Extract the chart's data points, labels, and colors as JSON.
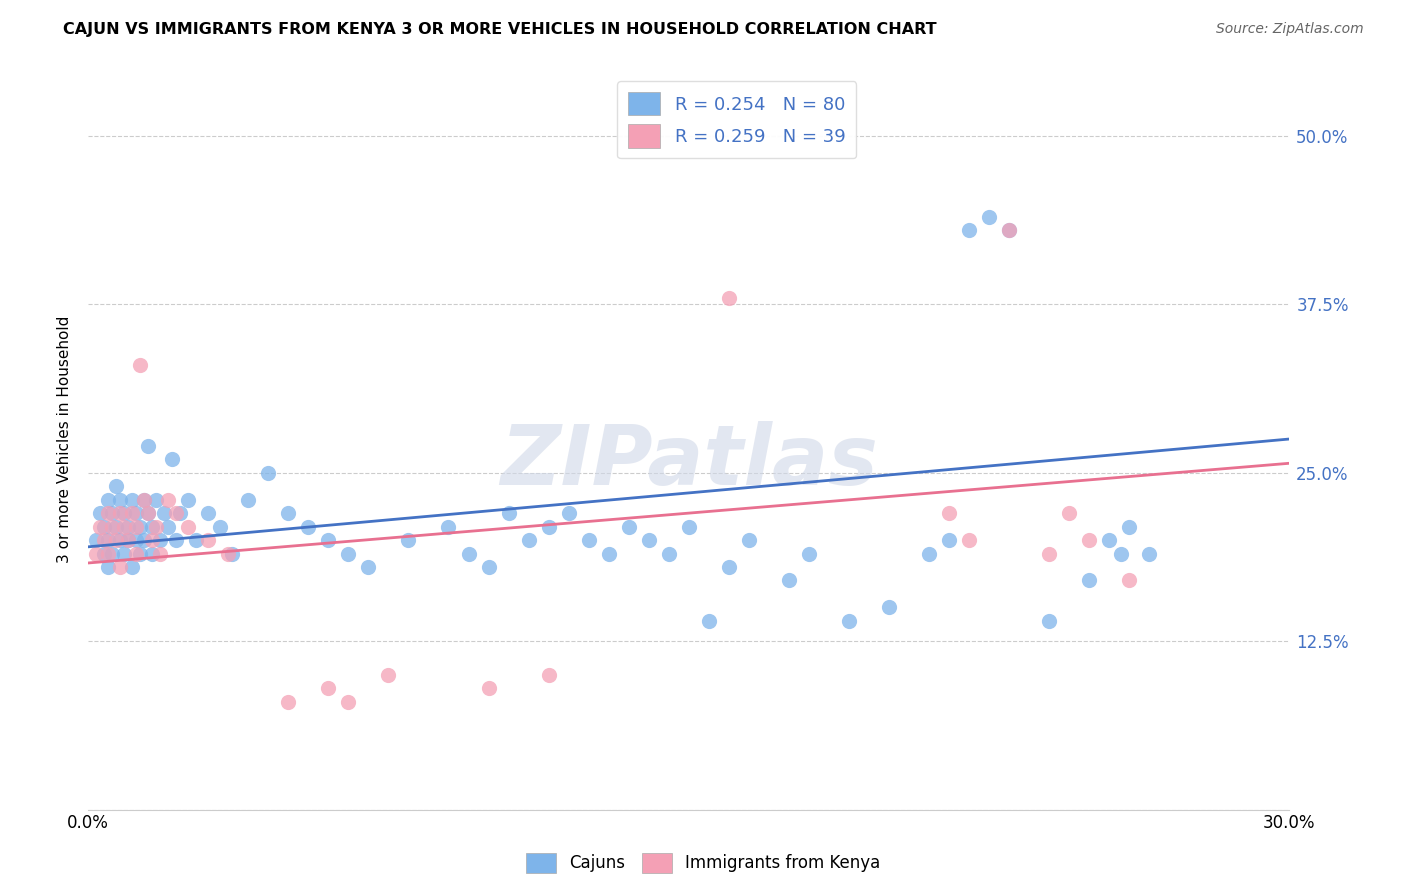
{
  "title": "CAJUN VS IMMIGRANTS FROM KENYA 3 OR MORE VEHICLES IN HOUSEHOLD CORRELATION CHART",
  "source": "Source: ZipAtlas.com",
  "ylabel": "3 or more Vehicles in Household",
  "xlim": [
    0.0,
    0.3
  ],
  "ylim": [
    0.0,
    0.55
  ],
  "xtick_positions": [
    0.0,
    0.05,
    0.1,
    0.15,
    0.2,
    0.25,
    0.3
  ],
  "xticklabels": [
    "0.0%",
    "",
    "",
    "",
    "",
    "",
    "30.0%"
  ],
  "ytick_positions": [
    0.0,
    0.125,
    0.25,
    0.375,
    0.5
  ],
  "ytick_labels": [
    "",
    "12.5%",
    "25.0%",
    "37.5%",
    "50.0%"
  ],
  "cajun_color": "#7eb4ea",
  "kenya_color": "#f4a0b5",
  "cajun_line_color": "#4472c4",
  "kenya_line_color": "#e87090",
  "legend_text_color": "#4472c4",
  "R_cajun": 0.254,
  "N_cajun": 80,
  "R_kenya": 0.259,
  "N_kenya": 39,
  "watermark": "ZIPatlas",
  "cajun_x": [
    0.002,
    0.003,
    0.004,
    0.004,
    0.005,
    0.005,
    0.005,
    0.006,
    0.006,
    0.007,
    0.007,
    0.008,
    0.008,
    0.009,
    0.009,
    0.01,
    0.01,
    0.011,
    0.011,
    0.012,
    0.012,
    0.013,
    0.013,
    0.014,
    0.014,
    0.015,
    0.015,
    0.016,
    0.016,
    0.017,
    0.018,
    0.019,
    0.02,
    0.021,
    0.022,
    0.023,
    0.025,
    0.027,
    0.03,
    0.033,
    0.036,
    0.04,
    0.045,
    0.05,
    0.055,
    0.06,
    0.065,
    0.07,
    0.08,
    0.09,
    0.095,
    0.1,
    0.105,
    0.11,
    0.115,
    0.12,
    0.125,
    0.13,
    0.135,
    0.14,
    0.145,
    0.15,
    0.155,
    0.16,
    0.165,
    0.175,
    0.18,
    0.19,
    0.2,
    0.21,
    0.215,
    0.22,
    0.225,
    0.23,
    0.24,
    0.25,
    0.255,
    0.258,
    0.26,
    0.265
  ],
  "cajun_y": [
    0.2,
    0.22,
    0.19,
    0.21,
    0.2,
    0.23,
    0.18,
    0.22,
    0.19,
    0.21,
    0.24,
    0.2,
    0.23,
    0.19,
    0.22,
    0.21,
    0.2,
    0.23,
    0.18,
    0.22,
    0.2,
    0.21,
    0.19,
    0.23,
    0.2,
    0.22,
    0.27,
    0.21,
    0.19,
    0.23,
    0.2,
    0.22,
    0.21,
    0.26,
    0.2,
    0.22,
    0.23,
    0.2,
    0.22,
    0.21,
    0.19,
    0.23,
    0.25,
    0.22,
    0.21,
    0.2,
    0.19,
    0.18,
    0.2,
    0.21,
    0.19,
    0.18,
    0.22,
    0.2,
    0.21,
    0.22,
    0.2,
    0.19,
    0.21,
    0.2,
    0.19,
    0.21,
    0.14,
    0.18,
    0.2,
    0.17,
    0.19,
    0.14,
    0.15,
    0.19,
    0.2,
    0.43,
    0.44,
    0.43,
    0.14,
    0.17,
    0.2,
    0.19,
    0.21,
    0.19
  ],
  "kenya_x": [
    0.002,
    0.003,
    0.004,
    0.005,
    0.005,
    0.006,
    0.007,
    0.008,
    0.008,
    0.009,
    0.01,
    0.011,
    0.012,
    0.012,
    0.013,
    0.014,
    0.015,
    0.016,
    0.017,
    0.018,
    0.02,
    0.022,
    0.025,
    0.03,
    0.035,
    0.05,
    0.06,
    0.065,
    0.075,
    0.1,
    0.115,
    0.16,
    0.215,
    0.22,
    0.23,
    0.24,
    0.245,
    0.25,
    0.26
  ],
  "kenya_y": [
    0.19,
    0.21,
    0.2,
    0.22,
    0.19,
    0.21,
    0.2,
    0.22,
    0.18,
    0.21,
    0.2,
    0.22,
    0.19,
    0.21,
    0.33,
    0.23,
    0.22,
    0.2,
    0.21,
    0.19,
    0.23,
    0.22,
    0.21,
    0.2,
    0.19,
    0.08,
    0.09,
    0.08,
    0.1,
    0.09,
    0.1,
    0.38,
    0.22,
    0.2,
    0.43,
    0.19,
    0.22,
    0.2,
    0.17
  ]
}
